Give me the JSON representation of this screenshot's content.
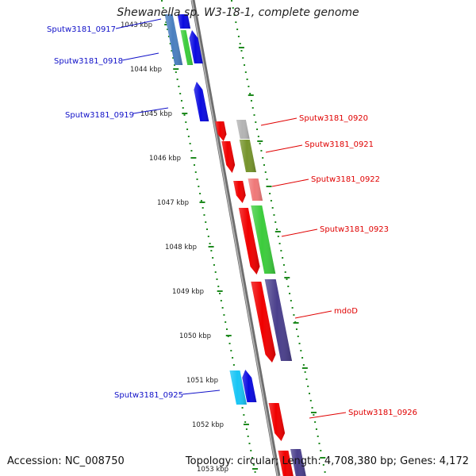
{
  "title": "Shewanella sp. W3-18-1, complete genome",
  "footer": {
    "accession": "Accession: NC_008750",
    "summary": "Topology: circular; Length: 4,708,380 bp; Genes: 4,172"
  },
  "colors": {
    "backbone": "#8a8a8a",
    "tick": "#1f8a1f",
    "label_left": "#1010c8",
    "label_right": "#e00000",
    "leader_left": "#1010c8",
    "leader_right": "#e00000"
  },
  "ruler": {
    "unit": "kbp",
    "kbp_labels": [
      "1043 kbp",
      "1044 kbp",
      "1045 kbp",
      "1046 kbp",
      "1047 kbp",
      "1048 kbp",
      "1049 kbp",
      "1050 kbp",
      "1051 kbp",
      "1052 kbp",
      "1053 kbp"
    ]
  },
  "genes_left": [
    {
      "label": "Sputw3181_0917"
    },
    {
      "label": "Sputw3181_0918"
    },
    {
      "label": "Sputw3181_0919"
    },
    {
      "label": "Sputw3181_0925"
    }
  ],
  "genes_right": [
    {
      "label": "Sputw3181_0920"
    },
    {
      "label": "Sputw3181_0921"
    },
    {
      "label": "Sputw3181_0922"
    },
    {
      "label": "Sputw3181_0923"
    },
    {
      "label": "mdoD"
    },
    {
      "label": "Sputw3181_0926"
    }
  ]
}
